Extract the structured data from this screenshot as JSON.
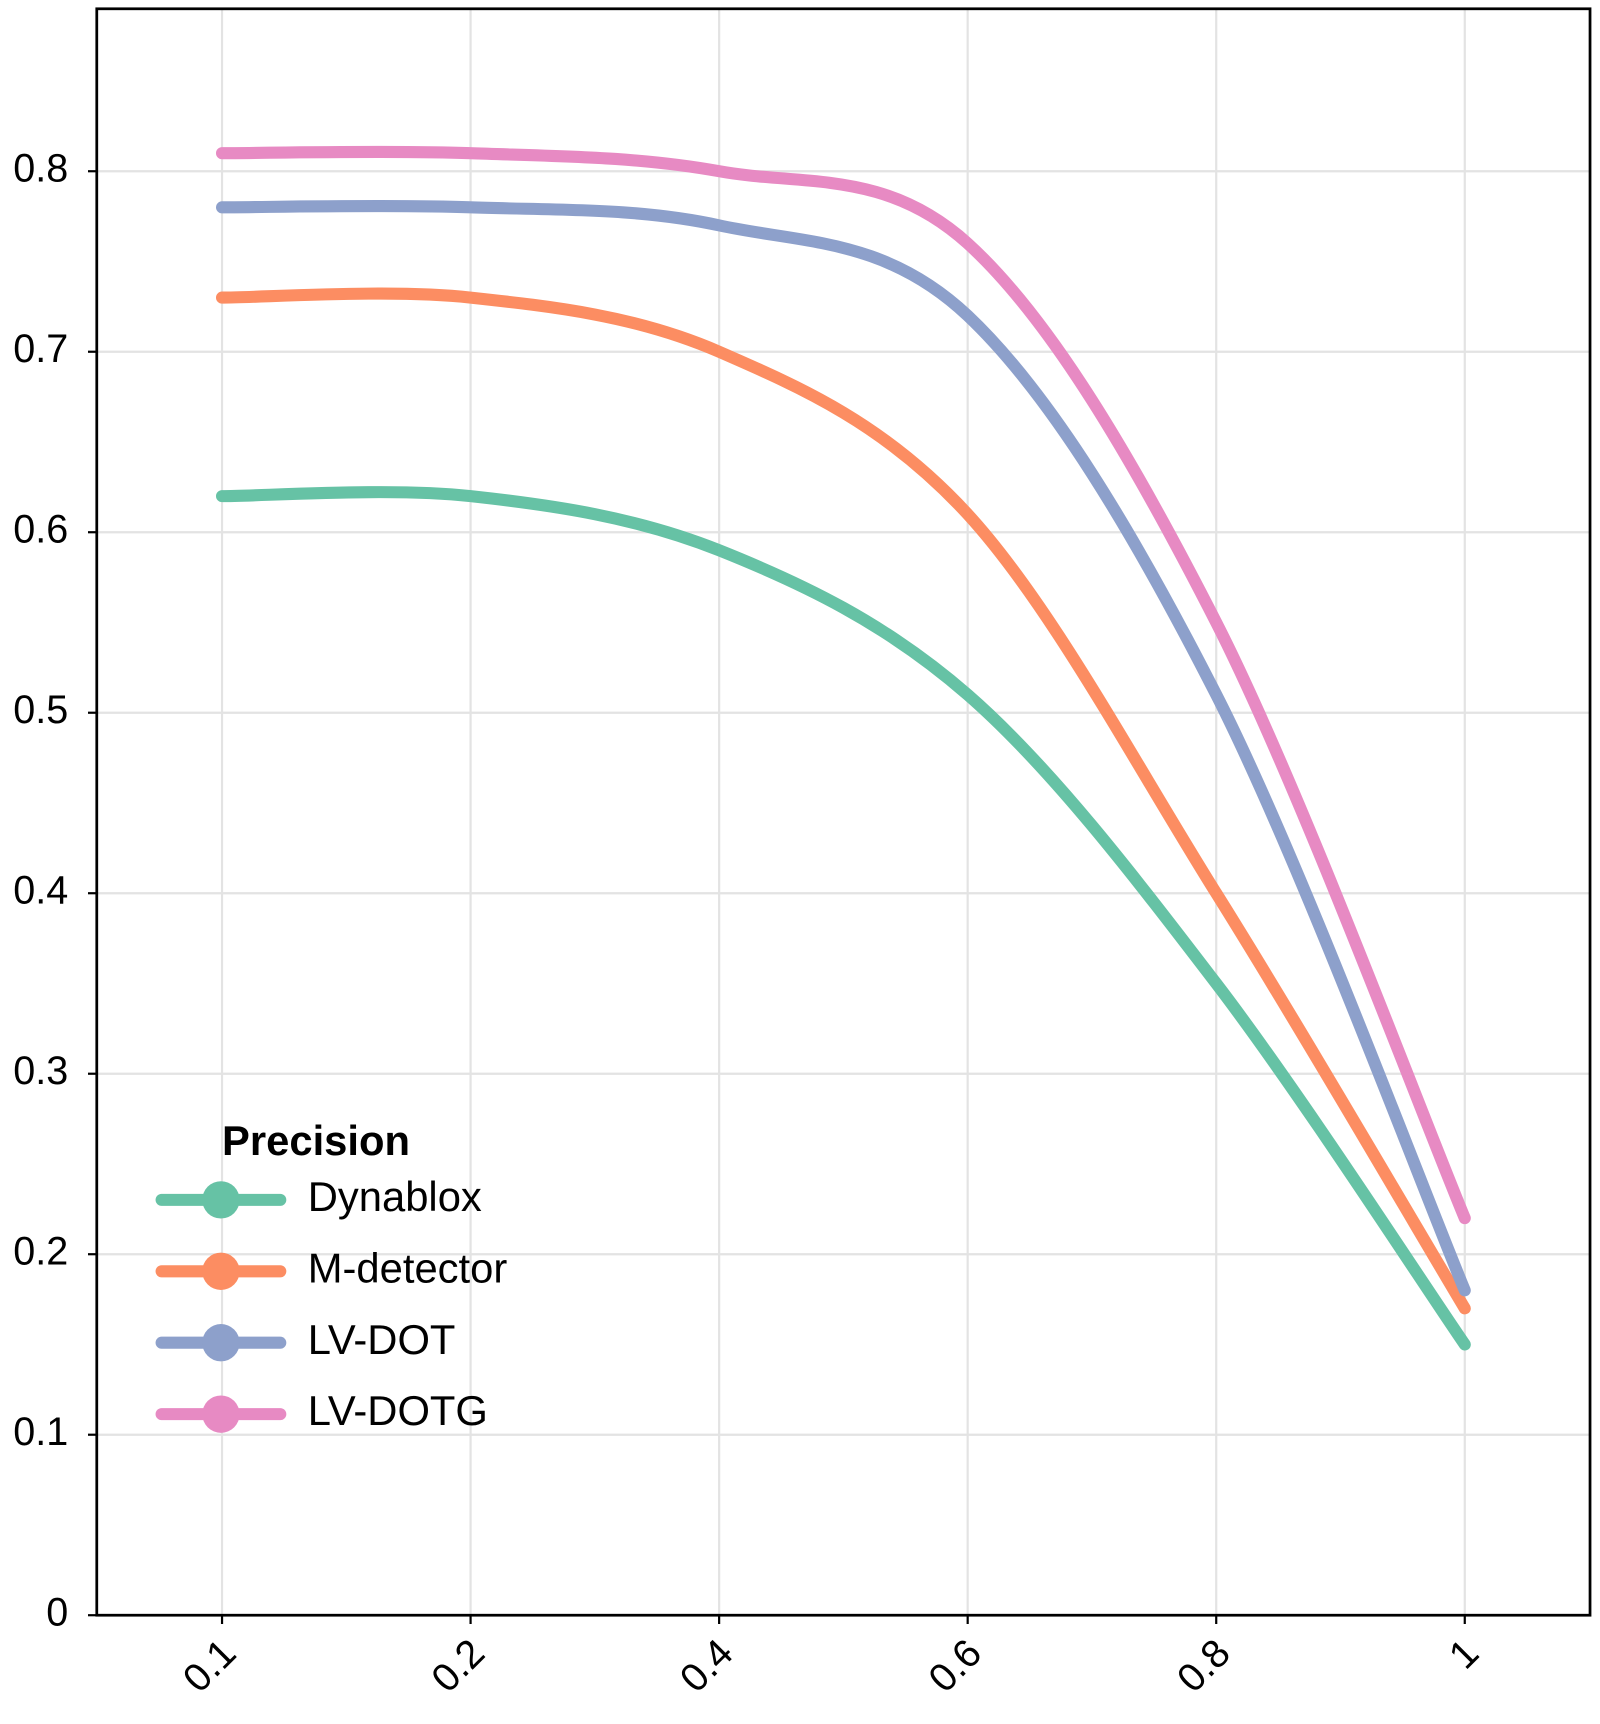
{
  "chart_data": {
    "type": "line",
    "categories": [
      "0.1",
      "0.2",
      "0.4",
      "0.6",
      "0.8",
      "1"
    ],
    "series": [
      {
        "name": "Dynablox",
        "color": "#66c2a5",
        "values": [
          0.62,
          0.62,
          0.59,
          0.51,
          0.35,
          0.15
        ]
      },
      {
        "name": "M-detector",
        "color": "#fc8d62",
        "values": [
          0.73,
          0.73,
          0.7,
          0.61,
          0.4,
          0.17
        ]
      },
      {
        "name": "LV-DOT",
        "color": "#8da0cb",
        "values": [
          0.78,
          0.78,
          0.77,
          0.72,
          0.51,
          0.18
        ]
      },
      {
        "name": "LV-DOTG",
        "color": "#e78ac3",
        "values": [
          0.81,
          0.81,
          0.8,
          0.76,
          0.55,
          0.22
        ]
      }
    ],
    "legend_title": "Precision",
    "legend": "lower left",
    "ylim": [
      0,
      0.89
    ],
    "yticks": [
      0,
      0.1,
      0.2,
      0.3,
      0.4,
      0.5,
      0.6,
      0.7,
      0.8
    ],
    "grid": true
  }
}
